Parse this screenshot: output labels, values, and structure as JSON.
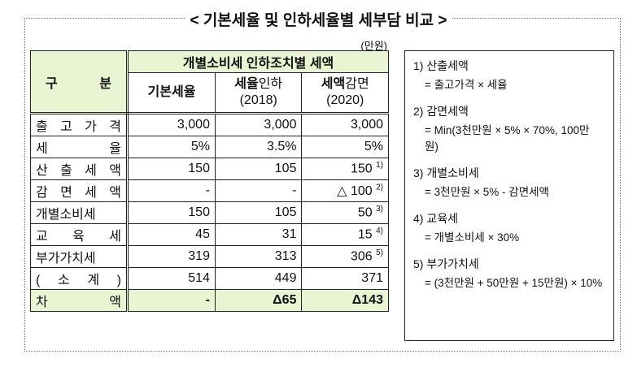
{
  "title": "< 기본세율 및 인하세율별 세부담 비교 >",
  "unit": "(만원)",
  "table": {
    "header": {
      "category": "구 분",
      "group": "개별소비세 인하조치별 세액",
      "columns": [
        {
          "bold": "기본세율"
        },
        {
          "bold": "세율",
          "text": "인하",
          "year": "(2018)"
        },
        {
          "bold": "세액",
          "text": "감면",
          "year": "(2020)"
        }
      ]
    },
    "rows": [
      {
        "label": "출 고 가 격",
        "cells": [
          "3,000",
          "3,000",
          "3,000"
        ]
      },
      {
        "label": "세 율",
        "cells": [
          "5%",
          "3.5%",
          "5%"
        ]
      },
      {
        "label": "산 출 세 액",
        "cells": [
          "150",
          "105",
          {
            "text": "150",
            "note": "1)"
          }
        ]
      },
      {
        "label": "감 면 세 액",
        "cells": [
          "-",
          "-",
          {
            "text": "△ 100",
            "note": "2)"
          }
        ]
      },
      {
        "label": "개별소비세",
        "cells": [
          "150",
          "105",
          {
            "text": "50",
            "note": "3)"
          }
        ]
      },
      {
        "label": "교 육 세",
        "cells": [
          "45",
          "31",
          {
            "text": "15",
            "note": "4)"
          }
        ]
      },
      {
        "label": "부가가치세",
        "cells": [
          "319",
          "313",
          {
            "text": "306",
            "note": "5)"
          }
        ]
      },
      {
        "label": "( 소 계 )",
        "cells": [
          "514",
          "449",
          "371"
        ]
      },
      {
        "label": "차 액",
        "cells": [
          "-",
          "Δ65",
          "Δ143"
        ],
        "highlight": true
      }
    ]
  },
  "notes": [
    {
      "title": "1) 산출세액",
      "formula": "= 출고가격 × 세율"
    },
    {
      "title": "2) 감면세액",
      "formula": "= Min(3천만원 × 5% × 70%, 100만 원)"
    },
    {
      "title": "3) 개별소비세",
      "formula": "= 3천만원 × 5% - 감면세액"
    },
    {
      "title": "4) 교육세",
      "formula": "= 개별소비세 × 30%"
    },
    {
      "title": "5) 부가가치세",
      "formula": "= (3천만원 + 50만원 + 15만원) × 10%"
    }
  ]
}
